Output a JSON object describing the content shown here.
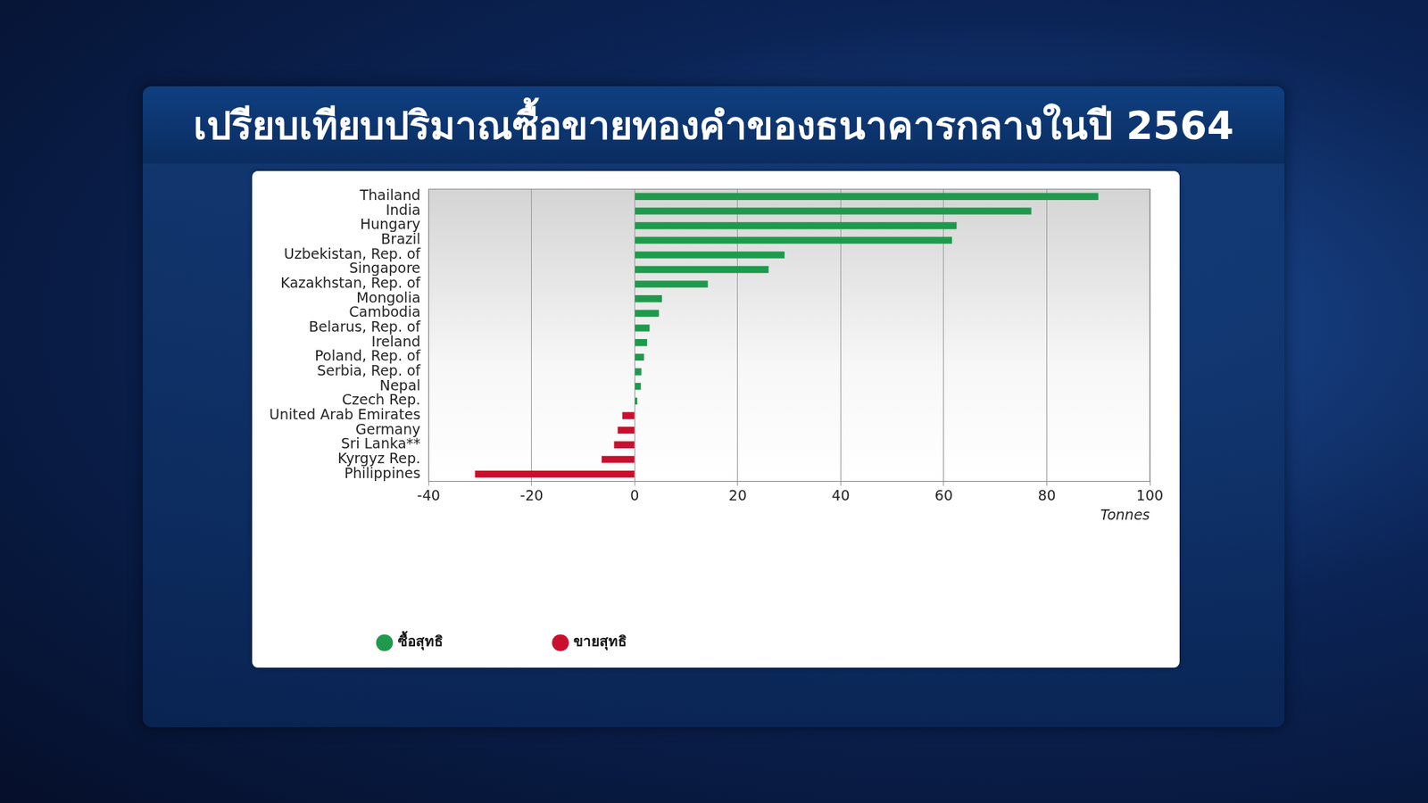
{
  "chart_data": {
    "type": "bar",
    "orientation": "horizontal",
    "title": "เปรียบเทียบปริมาณซื้อขายทองคำของธนาคารกลางในปี 2564",
    "categories": [
      "Thailand",
      "India",
      "Hungary",
      "Brazil",
      "Uzbekistan, Rep. of",
      "Singapore",
      "Kazakhstan, Rep. of",
      "Mongolia",
      "Cambodia",
      "Belarus, Rep. of",
      "Ireland",
      "Poland, Rep. of",
      "Serbia, Rep. of",
      "Nepal",
      "Czech Rep.",
      "United Arab Emirates",
      "Germany",
      "Sri Lanka**",
      "Kyrgyz Rep.",
      "Philippines"
    ],
    "series": [
      {
        "name": "ซื้อสุทธิ",
        "color": "#1f9a4c",
        "values": [
          90,
          77,
          62.5,
          61.6,
          29.1,
          26,
          14.2,
          5.3,
          4.7,
          2.9,
          2.4,
          1.8,
          1.3,
          1.2,
          0.5,
          null,
          null,
          null,
          null,
          null
        ]
      },
      {
        "name": "ขายสุทธิ",
        "color": "#c8102e",
        "values": [
          null,
          null,
          null,
          null,
          null,
          null,
          null,
          null,
          null,
          null,
          null,
          null,
          null,
          null,
          null,
          -2.4,
          -3.3,
          -4.0,
          -6.4,
          -31
        ]
      }
    ],
    "x_label": "Tonnes",
    "xlim": [
      -40,
      100
    ],
    "xticks": [
      -40,
      -20,
      0,
      20,
      40,
      60,
      80,
      100
    ],
    "grid": true,
    "legend": "bottom"
  }
}
